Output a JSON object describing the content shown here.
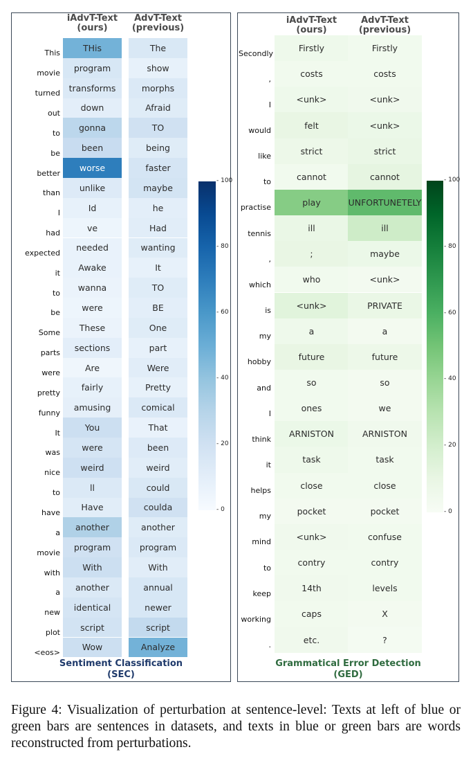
{
  "colors": {
    "sec_cmap": "Blues",
    "ged_cmap": "Greens",
    "sec_title": "#1f3a6b",
    "ged_title": "#2f6b3f"
  },
  "caption": "Figure 4: Visualization of perturbation at sentence-level: Texts at left of blue or green bars are sentences in datasets, and texts in blue or green bars are words reconstructed from perturbations.",
  "chart_data": [
    {
      "type": "heatmap",
      "title": "Sentiment Classification\n(SEC)",
      "columns": [
        "iAdvT-Text\n(ours)",
        "AdvT-Text\n(previous)"
      ],
      "colorbar": {
        "range": [
          0,
          100
        ],
        "ticks": [
          0,
          20,
          40,
          60,
          80,
          100
        ]
      },
      "rows": [
        {
          "token": "This",
          "cells": [
            {
              "text": "THis",
              "value": 48
            },
            {
              "text": "The",
              "value": 15
            }
          ]
        },
        {
          "token": "movie",
          "cells": [
            {
              "text": "program",
              "value": 16
            },
            {
              "text": "show",
              "value": 8
            }
          ]
        },
        {
          "token": "turned",
          "cells": [
            {
              "text": "transforms",
              "value": 14
            },
            {
              "text": "morphs",
              "value": 14
            }
          ]
        },
        {
          "token": "out",
          "cells": [
            {
              "text": "down",
              "value": 10
            },
            {
              "text": "Afraid",
              "value": 12
            }
          ]
        },
        {
          "token": "to",
          "cells": [
            {
              "text": "gonna",
              "value": 28
            },
            {
              "text": "TO",
              "value": 20
            }
          ]
        },
        {
          "token": "be",
          "cells": [
            {
              "text": "been",
              "value": 24
            },
            {
              "text": "being",
              "value": 12
            }
          ]
        },
        {
          "token": "better",
          "cells": [
            {
              "text": "worse",
              "value": 70
            },
            {
              "text": "faster",
              "value": 17
            }
          ]
        },
        {
          "token": "than",
          "cells": [
            {
              "text": "unlike",
              "value": 13
            },
            {
              "text": "maybe",
              "value": 18
            }
          ]
        },
        {
          "token": "I",
          "cells": [
            {
              "text": "Id",
              "value": 8
            },
            {
              "text": "he",
              "value": 10
            }
          ]
        },
        {
          "token": "had",
          "cells": [
            {
              "text": "ve",
              "value": 5
            },
            {
              "text": "Had",
              "value": 11
            }
          ]
        },
        {
          "token": "expected",
          "cells": [
            {
              "text": "needed",
              "value": 7
            },
            {
              "text": "wanting",
              "value": 12
            }
          ]
        },
        {
          "token": "it",
          "cells": [
            {
              "text": "Awake",
              "value": 7
            },
            {
              "text": "It",
              "value": 8
            }
          ]
        },
        {
          "token": "to",
          "cells": [
            {
              "text": "wanna",
              "value": 6
            },
            {
              "text": "TO",
              "value": 12
            }
          ]
        },
        {
          "token": "be",
          "cells": [
            {
              "text": "were",
              "value": 5
            },
            {
              "text": "BE",
              "value": 10
            }
          ]
        },
        {
          "token": "Some",
          "cells": [
            {
              "text": "These",
              "value": 6
            },
            {
              "text": "One",
              "value": 12
            }
          ]
        },
        {
          "token": "parts",
          "cells": [
            {
              "text": "sections",
              "value": 10
            },
            {
              "text": "part",
              "value": 8
            }
          ]
        },
        {
          "token": "were",
          "cells": [
            {
              "text": "Are",
              "value": 4
            },
            {
              "text": "Were",
              "value": 11
            }
          ]
        },
        {
          "token": "pretty",
          "cells": [
            {
              "text": "fairly",
              "value": 8
            },
            {
              "text": "Pretty",
              "value": 8
            }
          ]
        },
        {
          "token": "funny",
          "cells": [
            {
              "text": "amusing",
              "value": 9
            },
            {
              "text": "comical",
              "value": 14
            }
          ]
        },
        {
          "token": "It",
          "cells": [
            {
              "text": "You",
              "value": 22
            },
            {
              "text": "That",
              "value": 7
            }
          ]
        },
        {
          "token": "was",
          "cells": [
            {
              "text": "were",
              "value": 17
            },
            {
              "text": "been",
              "value": 13
            }
          ]
        },
        {
          "token": "nice",
          "cells": [
            {
              "text": "weird",
              "value": 21
            },
            {
              "text": "weird",
              "value": 11
            }
          ]
        },
        {
          "token": "to",
          "cells": [
            {
              "text": "ll",
              "value": 14
            },
            {
              "text": "could",
              "value": 15
            }
          ]
        },
        {
          "token": "have",
          "cells": [
            {
              "text": "Have",
              "value": 11
            },
            {
              "text": "coulda",
              "value": 20
            }
          ]
        },
        {
          "token": "a",
          "cells": [
            {
              "text": "another",
              "value": 32
            },
            {
              "text": "another",
              "value": 12
            }
          ]
        },
        {
          "token": "movie",
          "cells": [
            {
              "text": "program",
              "value": 20
            },
            {
              "text": "program",
              "value": 14
            }
          ]
        },
        {
          "token": "with",
          "cells": [
            {
              "text": "With",
              "value": 22
            },
            {
              "text": "With",
              "value": 11
            }
          ]
        },
        {
          "token": "a",
          "cells": [
            {
              "text": "another",
              "value": 14
            },
            {
              "text": "annual",
              "value": 16
            }
          ]
        },
        {
          "token": "new",
          "cells": [
            {
              "text": "identical",
              "value": 17
            },
            {
              "text": "newer",
              "value": 16
            }
          ]
        },
        {
          "token": "plot",
          "cells": [
            {
              "text": "script",
              "value": 19
            },
            {
              "text": "script",
              "value": 26
            }
          ]
        },
        {
          "token": "<eos>",
          "cells": [
            {
              "text": "Wow",
              "value": 22
            },
            {
              "text": "Analyze",
              "value": 48
            }
          ]
        }
      ]
    },
    {
      "type": "heatmap",
      "title": "Grammatical Error Detection\n(GED)",
      "columns": [
        "iAdvT-Text\n(ours)",
        "AdvT-Text\n(previous)"
      ],
      "colorbar": {
        "range": [
          0,
          100
        ],
        "ticks": [
          0,
          20,
          40,
          60,
          80,
          100
        ]
      },
      "rows": [
        {
          "token": "Secondly",
          "cells": [
            {
              "text": "Firstly",
              "value": 6
            },
            {
              "text": "Firstly",
              "value": 4
            }
          ]
        },
        {
          "token": ",",
          "cells": [
            {
              "text": "costs",
              "value": 4
            },
            {
              "text": "costs",
              "value": 4
            }
          ]
        },
        {
          "token": "I",
          "cells": [
            {
              "text": "<unk>",
              "value": 6
            },
            {
              "text": "<unk>",
              "value": 5
            }
          ]
        },
        {
          "token": "would",
          "cells": [
            {
              "text": "felt",
              "value": 10
            },
            {
              "text": "<unk>",
              "value": 8
            }
          ]
        },
        {
          "token": "like",
          "cells": [
            {
              "text": "strict",
              "value": 7
            },
            {
              "text": "strict",
              "value": 9
            }
          ]
        },
        {
          "token": "to",
          "cells": [
            {
              "text": "cannot",
              "value": 4
            },
            {
              "text": "cannot",
              "value": 12
            }
          ]
        },
        {
          "token": "practise",
          "cells": [
            {
              "text": "play",
              "value": 45
            },
            {
              "text": "UNFORTUNETELY",
              "value": 55
            }
          ]
        },
        {
          "token": "tennis",
          "cells": [
            {
              "text": "ill",
              "value": 9
            },
            {
              "text": "ill",
              "value": 22
            }
          ]
        },
        {
          "token": ",",
          "cells": [
            {
              "text": ";",
              "value": 10
            },
            {
              "text": "maybe",
              "value": 8
            }
          ]
        },
        {
          "token": "which",
          "cells": [
            {
              "text": "who",
              "value": 4
            },
            {
              "text": "<unk>",
              "value": 3
            }
          ]
        },
        {
          "token": "is",
          "cells": [
            {
              "text": "<unk>",
              "value": 14
            },
            {
              "text": "PRIVATE",
              "value": 9
            }
          ]
        },
        {
          "token": "my",
          "cells": [
            {
              "text": "a",
              "value": 6
            },
            {
              "text": "a",
              "value": 3
            }
          ]
        },
        {
          "token": "hobby",
          "cells": [
            {
              "text": "future",
              "value": 10
            },
            {
              "text": "future",
              "value": 7
            }
          ]
        },
        {
          "token": "and",
          "cells": [
            {
              "text": "so",
              "value": 4
            },
            {
              "text": "so",
              "value": 3
            }
          ]
        },
        {
          "token": "I",
          "cells": [
            {
              "text": "ones",
              "value": 4
            },
            {
              "text": "we",
              "value": 3
            }
          ]
        },
        {
          "token": "think",
          "cells": [
            {
              "text": "ARNISTON",
              "value": 8
            },
            {
              "text": "ARNISTON",
              "value": 5
            }
          ]
        },
        {
          "token": "it",
          "cells": [
            {
              "text": "task",
              "value": 6
            },
            {
              "text": "task",
              "value": 4
            }
          ]
        },
        {
          "token": "helps",
          "cells": [
            {
              "text": "close",
              "value": 4
            },
            {
              "text": "close",
              "value": 4
            }
          ]
        },
        {
          "token": "my",
          "cells": [
            {
              "text": "pocket",
              "value": 3
            },
            {
              "text": "pocket",
              "value": 3
            }
          ]
        },
        {
          "token": "mind",
          "cells": [
            {
              "text": "<unk>",
              "value": 5
            },
            {
              "text": "confuse",
              "value": 4
            }
          ]
        },
        {
          "token": "to",
          "cells": [
            {
              "text": "contry",
              "value": 4
            },
            {
              "text": "contry",
              "value": 4
            }
          ]
        },
        {
          "token": "keep",
          "cells": [
            {
              "text": "14th",
              "value": 5
            },
            {
              "text": "levels",
              "value": 4
            }
          ]
        },
        {
          "token": "working",
          "cells": [
            {
              "text": "caps",
              "value": 4
            },
            {
              "text": "X",
              "value": 3
            }
          ]
        },
        {
          "token": ".",
          "cells": [
            {
              "text": "etc.",
              "value": 5
            },
            {
              "text": "?",
              "value": 2
            }
          ]
        }
      ]
    }
  ]
}
